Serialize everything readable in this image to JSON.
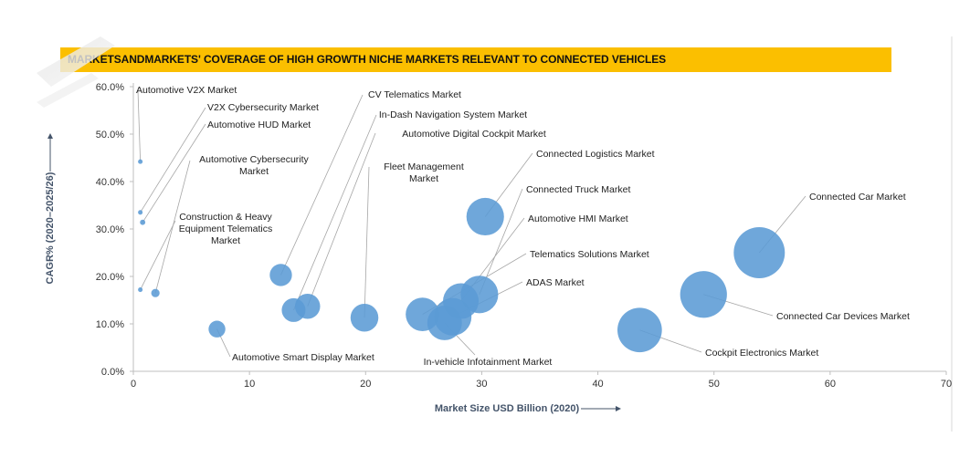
{
  "title": "MARKETSANDMARKETS' COVERAGE OF HIGH GROWTH NICHE MARKETS RELEVANT TO CONNECTED VEHICLES",
  "colors": {
    "title_bar": "#FBBF00",
    "bubble": "#5B9BD5",
    "axis_title": "#44546A",
    "leader": "#A6A6A6"
  },
  "chart_data": {
    "type": "scatter",
    "xlabel": "Market Size USD Billion (2020)",
    "ylabel": "CAGR% (2020–2025/26)",
    "xlim": [
      0,
      70
    ],
    "ylim": [
      0,
      60
    ],
    "x_ticks": [
      "0",
      "10",
      "20",
      "30",
      "40",
      "50",
      "60",
      "70"
    ],
    "y_ticks": [
      "0.0%",
      "10.0%",
      "20.0%",
      "30.0%",
      "40.0%",
      "50.0%",
      "60.0%"
    ],
    "points": [
      {
        "label": [
          "Automotive V2X Market"
        ],
        "x": 0.6,
        "y": 44.2,
        "size": 0.3
      },
      {
        "label": [
          "V2X Cybersecurity Market"
        ],
        "x": 0.6,
        "y": 33.5,
        "size": 0.3
      },
      {
        "label": [
          "Automotive HUD Market"
        ],
        "x": 0.8,
        "y": 31.4,
        "size": 0.4
      },
      {
        "label": [
          "Automotive Cybersecurity",
          "Market"
        ],
        "x": 1.9,
        "y": 16.5,
        "size": 1.0
      },
      {
        "label": [
          "Construction & Heavy",
          "Equipment Telematics",
          "Market"
        ],
        "x": 0.6,
        "y": 17.2,
        "size": 0.3
      },
      {
        "label": [
          "Automotive Smart Display Market"
        ],
        "x": 7.2,
        "y": 8.9,
        "size": 4
      },
      {
        "label": [
          "CV Telematics Market"
        ],
        "x": 12.7,
        "y": 20.3,
        "size": 7
      },
      {
        "label": [
          "In-Dash Navigation System Market"
        ],
        "x": 13.8,
        "y": 12.9,
        "size": 8
      },
      {
        "label": [
          "Automotive Digital Cockpit Market"
        ],
        "x": 15.0,
        "y": 13.7,
        "size": 9
      },
      {
        "label": [
          "Fleet Management",
          "Market"
        ],
        "x": 19.9,
        "y": 11.3,
        "size": 11
      },
      {
        "label": [
          "Connected Logistics Market"
        ],
        "x": 30.3,
        "y": 32.6,
        "size": 20
      },
      {
        "label": [
          "Connected Truck Market"
        ],
        "x": 29.8,
        "y": 16.2,
        "size": 20
      },
      {
        "label": [
          "Automotive HMI Market"
        ],
        "x": 28.2,
        "y": 14.8,
        "size": 18
      },
      {
        "label": [
          "Telematics Solutions Market"
        ],
        "x": 24.9,
        "y": 12.0,
        "size": 16
      },
      {
        "label": [
          "ADAS Market"
        ],
        "x": 27.5,
        "y": 11.5,
        "size": 20
      },
      {
        "label": [
          "In-vehicle Infotainment Market"
        ],
        "x": 26.8,
        "y": 10.2,
        "size": 17
      },
      {
        "label": [
          "Connected Car Market"
        ],
        "x": 53.9,
        "y": 25.0,
        "size": 37
      },
      {
        "label": [
          "Connected Car Devices Market"
        ],
        "x": 49.1,
        "y": 16.2,
        "size": 31
      },
      {
        "label": [
          "Cockpit Electronics Market"
        ],
        "x": 43.6,
        "y": 8.7,
        "size": 28
      }
    ]
  }
}
